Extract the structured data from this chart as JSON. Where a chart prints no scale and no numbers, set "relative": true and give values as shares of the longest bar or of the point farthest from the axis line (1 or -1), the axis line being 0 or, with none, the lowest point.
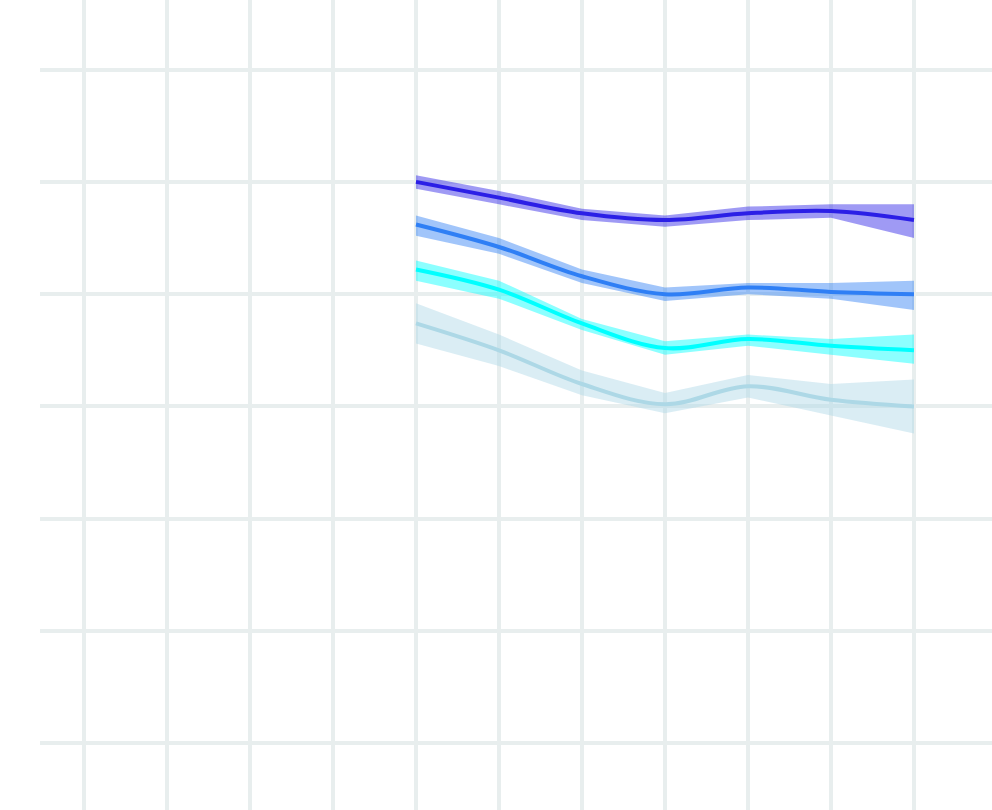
{
  "chart_data": {
    "type": "line",
    "relative": true,
    "grid": true,
    "marker": "none",
    "line_style": "solid",
    "categories": [
      null,
      null,
      null,
      null,
      null,
      null,
      null,
      null,
      null,
      null,
      null
    ],
    "series": [
      {
        "color": "#2b1fe6",
        "values": [
          null,
          null,
          null,
          null,
          1.0,
          0.93,
          0.86,
          0.83,
          0.86,
          0.87,
          0.83
        ],
        "lower": [
          null,
          null,
          null,
          null,
          0.97,
          0.9,
          0.83,
          0.8,
          0.83,
          0.84,
          0.75
        ],
        "upper": [
          null,
          null,
          null,
          null,
          1.03,
          0.96,
          0.88,
          0.85,
          0.89,
          0.9,
          0.9
        ]
      },
      {
        "color": "#2f7ff5",
        "values": [
          null,
          null,
          null,
          null,
          0.81,
          0.71,
          0.58,
          0.5,
          0.53,
          0.51,
          0.5
        ],
        "lower": [
          null,
          null,
          null,
          null,
          0.76,
          0.68,
          0.55,
          0.47,
          0.5,
          0.48,
          0.43
        ],
        "upper": [
          null,
          null,
          null,
          null,
          0.85,
          0.75,
          0.61,
          0.53,
          0.55,
          0.55,
          0.56
        ]
      },
      {
        "color": "#00ffff",
        "values": [
          null,
          null,
          null,
          null,
          0.61,
          0.52,
          0.37,
          0.26,
          0.3,
          0.27,
          0.25
        ],
        "lower": [
          null,
          null,
          null,
          null,
          0.56,
          0.48,
          0.34,
          0.23,
          0.27,
          0.23,
          0.19
        ],
        "upper": [
          null,
          null,
          null,
          null,
          0.65,
          0.56,
          0.39,
          0.29,
          0.32,
          0.3,
          0.32
        ]
      },
      {
        "color": "#add8e6",
        "values": [
          null,
          null,
          null,
          null,
          0.37,
          0.25,
          0.1,
          0.01,
          0.09,
          0.03,
          0.0
        ],
        "lower": [
          null,
          null,
          null,
          null,
          0.28,
          0.18,
          0.05,
          -0.03,
          0.04,
          -0.04,
          -0.12
        ],
        "upper": [
          null,
          null,
          null,
          null,
          0.46,
          0.32,
          0.16,
          0.06,
          0.14,
          0.1,
          0.12
        ]
      }
    ]
  }
}
